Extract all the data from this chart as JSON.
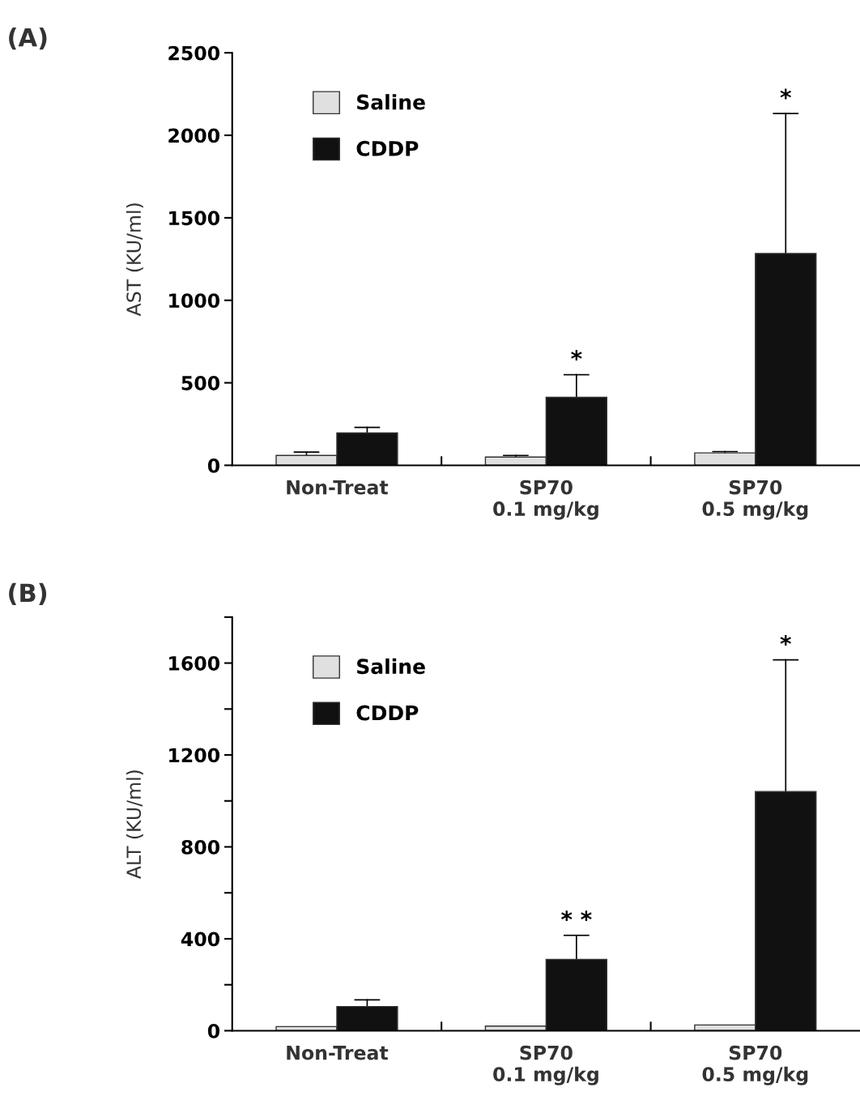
{
  "chart_data": [
    {
      "type": "bar",
      "title": "(A)",
      "ylabel": "AST (KU/ml)",
      "categories": [
        "Non-Treat",
        "SP70\n0.1 mg/kg",
        "SP70\n0.5 mg/kg"
      ],
      "series": [
        {
          "name": "Saline",
          "color": "#e0e0e0",
          "values": [
            60,
            50,
            75
          ],
          "errors": [
            [
              60,
              80
            ],
            [
              50,
              60
            ],
            [
              75,
              83
            ]
          ]
        },
        {
          "name": "CDDP",
          "color": "#111111",
          "values": [
            196,
            412,
            1284
          ],
          "errors": [
            [
              196,
              230
            ],
            [
              412,
              549
            ],
            [
              1284,
              2132
            ]
          ]
        }
      ],
      "ylim": [
        0,
        2500
      ],
      "yticks": [
        0,
        500,
        1000,
        1500,
        2000,
        2500
      ],
      "legend": "top left",
      "grid": false,
      "annotations": [
        "*",
        "*"
      ]
    },
    {
      "type": "bar",
      "title": "(B)",
      "ylabel": "ALT (KU/ml)",
      "categories": [
        "Non-Treat",
        "SP70\n0.1 mg/kg",
        "SP70\n0.5 mg/kg"
      ],
      "series": [
        {
          "name": "Saline",
          "color": "#e0e0e0",
          "values": [
            18,
            20,
            25
          ]
        },
        {
          "name": "CDDP",
          "color": "#111111",
          "values": [
            105,
            310,
            1041
          ],
          "errors": [
            [
              105,
              134
            ],
            [
              310,
              415
            ],
            [
              1041,
              1614
            ]
          ]
        }
      ],
      "ylim": [
        0,
        1800
      ],
      "yticks": [
        0,
        {
          "value": 200,
          "label": null
        },
        400,
        {
          "value": 600,
          "label": null
        },
        800,
        {
          "value": 1000,
          "label": null
        },
        1200,
        {
          "value": 1400,
          "label": null
        },
        1600,
        {
          "value": 1800,
          "label": null
        }
      ],
      "legend": "top left",
      "grid": false,
      "annotations": [
        "* *",
        "*"
      ]
    }
  ]
}
